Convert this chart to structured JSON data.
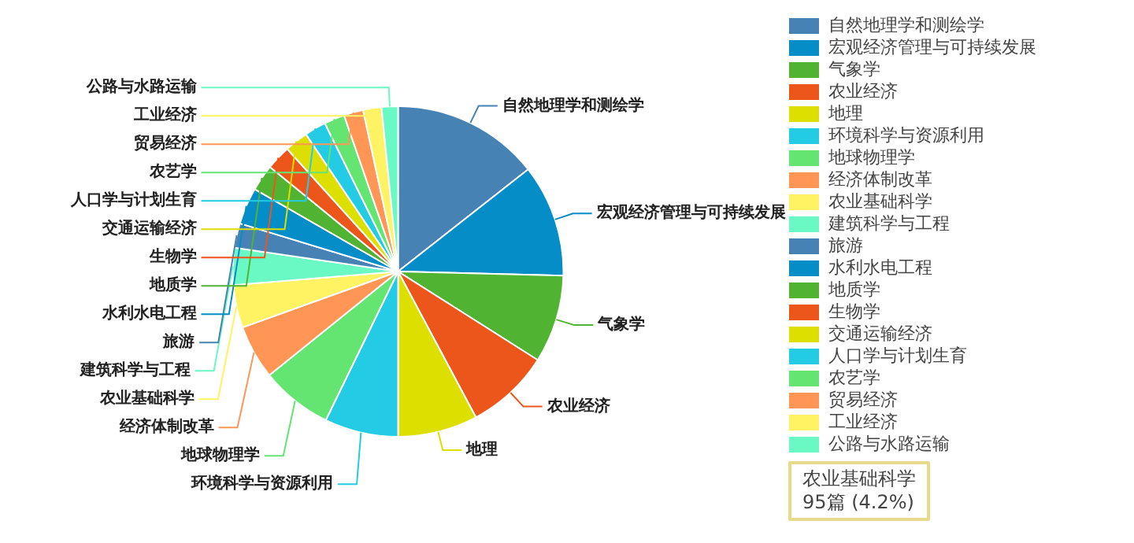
{
  "chart_data": {
    "type": "pie",
    "categories": [
      "自然地理学和测绘学",
      "宏观经济管理与可持续发展",
      "气象学",
      "农业经济",
      "地理",
      "环境科学与资源利用",
      "地球物理学",
      "经济体制改革",
      "农业基础科学",
      "建筑科学与工程",
      "旅游",
      "水利水电工程",
      "地质学",
      "生物学",
      "交通运输经济",
      "人口学与计划生育",
      "农艺学",
      "贸易经济",
      "工业经济",
      "公路与水路运输"
    ],
    "values": [
      14.4,
      11,
      8.6,
      8.2,
      7.8,
      7.2,
      7,
      5.3,
      4.2,
      3.6,
      2.4,
      3.6,
      2.6,
      2.4,
      2.3,
      2.1,
      2.0,
      1.9,
      1.8,
      1.6
    ],
    "colors": [
      "#4682b4",
      "#058dc7",
      "#50b432",
      "#ed561b",
      "#dddf00",
      "#24cbe5",
      "#64e572",
      "#ff9655",
      "#fff263",
      "#6af9c4",
      "#4682b4",
      "#058dc7",
      "#50b432",
      "#ed561b",
      "#dddf00",
      "#24cbe5",
      "#64e572",
      "#ff9655",
      "#fff263",
      "#6af9c4"
    ],
    "legend": "right",
    "annotations": [
      "农业基础科学\n95篇 (4.2%)"
    ]
  }
}
